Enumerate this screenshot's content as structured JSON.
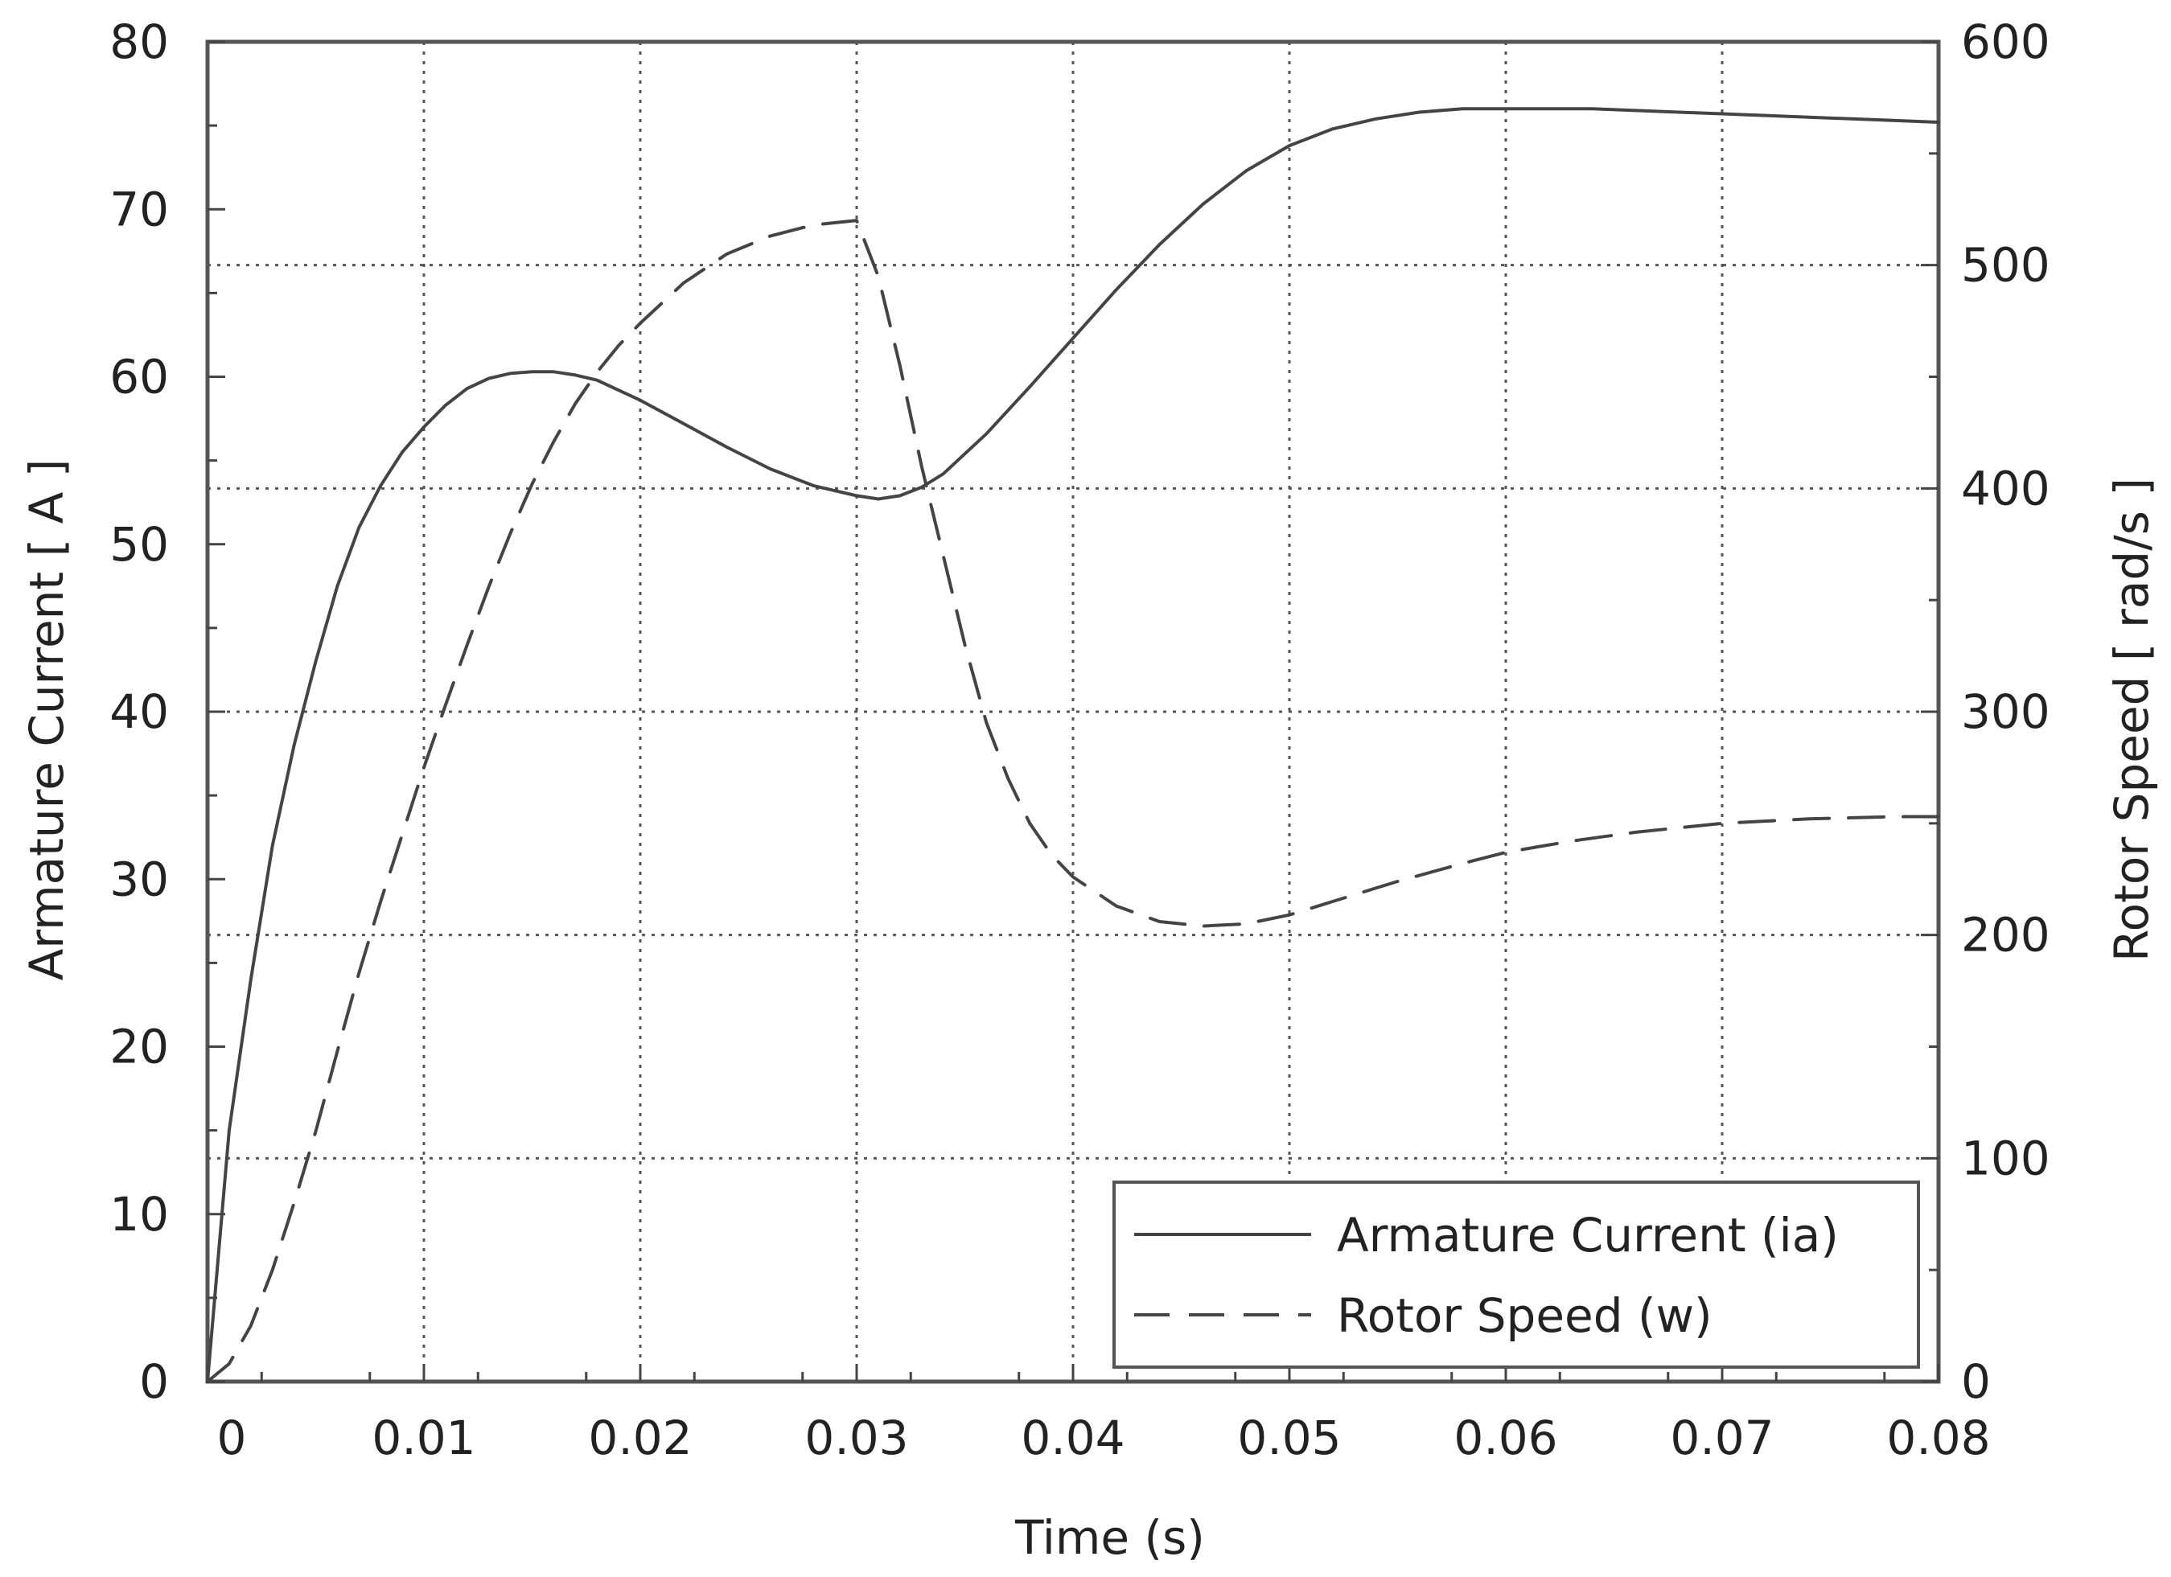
{
  "chart_data": {
    "type": "line",
    "xlabel": "Time (s)",
    "ylabel_left": "Armature Current  [ A ]",
    "ylabel_right": "Rotor Speed  [ rad/s ]",
    "xlim": [
      0,
      0.08
    ],
    "ylim_left": [
      0,
      80
    ],
    "ylim_right": [
      0,
      600
    ],
    "x_ticks": [
      "0",
      "0.01",
      "0.02",
      "0.03",
      "0.04",
      "0.05",
      "0.06",
      "0.07",
      "0.08"
    ],
    "y_left_ticks": [
      "0",
      "10",
      "20",
      "30",
      "40",
      "50",
      "60",
      "70",
      "80"
    ],
    "y_right_ticks": [
      "0",
      "100",
      "200",
      "300",
      "400",
      "500",
      "600"
    ],
    "grid": true,
    "legend_position": "bottom-right",
    "series": [
      {
        "name": "Armature Current (ia)",
        "axis": "left",
        "style": "solid",
        "color": "#444444",
        "x": [
          0,
          0.001,
          0.002,
          0.003,
          0.004,
          0.005,
          0.006,
          0.007,
          0.008,
          0.009,
          0.01,
          0.011,
          0.012,
          0.013,
          0.014,
          0.015,
          0.016,
          0.017,
          0.018,
          0.02,
          0.022,
          0.024,
          0.026,
          0.028,
          0.03,
          0.031,
          0.032,
          0.033,
          0.034,
          0.036,
          0.038,
          0.04,
          0.042,
          0.044,
          0.046,
          0.048,
          0.05,
          0.052,
          0.054,
          0.056,
          0.058,
          0.06,
          0.062,
          0.064,
          0.066,
          0.068,
          0.07,
          0.072,
          0.074,
          0.076,
          0.078,
          0.08
        ],
        "values": [
          0,
          15,
          24,
          32,
          38,
          43,
          47.5,
          51,
          53.5,
          55.5,
          57,
          58.3,
          59.3,
          59.9,
          60.2,
          60.3,
          60.3,
          60.1,
          59.8,
          58.6,
          57.2,
          55.8,
          54.5,
          53.5,
          52.9,
          52.7,
          52.9,
          53.4,
          54.2,
          56.6,
          59.4,
          62.3,
          65.2,
          67.9,
          70.3,
          72.3,
          73.8,
          74.8,
          75.4,
          75.8,
          76.0,
          76.0,
          76.0,
          76.0,
          75.9,
          75.8,
          75.7,
          75.6,
          75.5,
          75.4,
          75.3,
          75.2
        ]
      },
      {
        "name": "Rotor Speed (w)",
        "axis": "right",
        "style": "dashed",
        "color": "#444444",
        "x": [
          0,
          0.001,
          0.002,
          0.003,
          0.004,
          0.005,
          0.006,
          0.007,
          0.008,
          0.009,
          0.01,
          0.011,
          0.012,
          0.013,
          0.014,
          0.015,
          0.016,
          0.017,
          0.018,
          0.019,
          0.02,
          0.022,
          0.024,
          0.026,
          0.028,
          0.03,
          0.031,
          0.032,
          0.033,
          0.034,
          0.035,
          0.036,
          0.037,
          0.038,
          0.039,
          0.04,
          0.042,
          0.044,
          0.046,
          0.048,
          0.05,
          0.052,
          0.055,
          0.058,
          0.06,
          0.063,
          0.066,
          0.07,
          0.074,
          0.078,
          0.08
        ],
        "values": [
          0,
          8,
          25,
          50,
          80,
          112,
          148,
          183,
          215,
          245,
          275,
          303,
          330,
          356,
          380,
          402,
          421,
          438,
          452,
          464,
          474,
          492,
          505,
          513,
          518,
          520,
          495,
          455,
          410,
          370,
          330,
          295,
          270,
          250,
          236,
          226,
          213,
          206,
          204,
          205,
          209,
          215,
          224,
          232,
          237,
          242,
          246,
          250,
          252,
          253,
          253
        ]
      }
    ]
  }
}
